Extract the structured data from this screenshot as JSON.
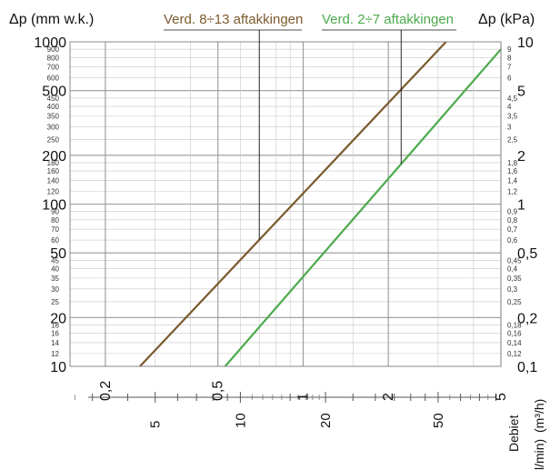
{
  "chart_data": {
    "type": "line",
    "scale": "log-log",
    "left_axis_label": "Δp (mm w.k.)",
    "right_axis_label": "Δp (kPa)",
    "bottom_axis_label": "Debiet",
    "bottom_axis_units": "(m³/h)",
    "lower_axis_units": "l/min)",
    "x_range_m3h": [
      0.15,
      5
    ],
    "y_range_mmwk": [
      10,
      1000
    ],
    "y_range_kpa": [
      0.1,
      10
    ],
    "left_major_ticks": [
      {
        "v": 1000,
        "label": "1000"
      },
      {
        "v": 500,
        "label": "500"
      },
      {
        "v": 200,
        "label": "200"
      },
      {
        "v": 100,
        "label": "100"
      },
      {
        "v": 50,
        "label": "50"
      },
      {
        "v": 20,
        "label": "20"
      },
      {
        "v": 10,
        "label": "10"
      }
    ],
    "left_minor_ticks": [
      {
        "v": 900,
        "label": "900"
      },
      {
        "v": 800,
        "label": "800"
      },
      {
        "v": 700,
        "label": "700"
      },
      {
        "v": 600,
        "label": "600"
      },
      {
        "v": 450,
        "label": "450"
      },
      {
        "v": 400,
        "label": "400"
      },
      {
        "v": 350,
        "label": "350"
      },
      {
        "v": 300,
        "label": "300"
      },
      {
        "v": 250,
        "label": "250"
      },
      {
        "v": 180,
        "label": "180"
      },
      {
        "v": 160,
        "label": "160"
      },
      {
        "v": 140,
        "label": "140"
      },
      {
        "v": 120,
        "label": "120"
      },
      {
        "v": 90,
        "label": "90"
      },
      {
        "v": 80,
        "label": "80"
      },
      {
        "v": 70,
        "label": "70"
      },
      {
        "v": 60,
        "label": "60"
      },
      {
        "v": 45,
        "label": "45"
      },
      {
        "v": 40,
        "label": "40"
      },
      {
        "v": 35,
        "label": "35"
      },
      {
        "v": 30,
        "label": "30"
      },
      {
        "v": 25,
        "label": "25"
      },
      {
        "v": 18,
        "label": "18"
      },
      {
        "v": 16,
        "label": "16"
      },
      {
        "v": 14,
        "label": "14"
      },
      {
        "v": 12,
        "label": "12"
      }
    ],
    "right_major_ticks": [
      {
        "v": 10,
        "label": "10"
      },
      {
        "v": 5,
        "label": "5"
      },
      {
        "v": 2,
        "label": "2"
      },
      {
        "v": 1,
        "label": "1"
      },
      {
        "v": 0.5,
        "label": "0,5"
      },
      {
        "v": 0.2,
        "label": "0,2"
      },
      {
        "v": 0.1,
        "label": "0,1"
      }
    ],
    "right_minor_ticks": [
      {
        "v": 9,
        "label": "9"
      },
      {
        "v": 8,
        "label": "8"
      },
      {
        "v": 7,
        "label": "7"
      },
      {
        "v": 6,
        "label": "6"
      },
      {
        "v": 4.5,
        "label": "4,5"
      },
      {
        "v": 4,
        "label": "4"
      },
      {
        "v": 3.5,
        "label": "3,5"
      },
      {
        "v": 3,
        "label": "3"
      },
      {
        "v": 2.5,
        "label": "2,5"
      },
      {
        "v": 1.8,
        "label": "1,8"
      },
      {
        "v": 1.6,
        "label": "1,6"
      },
      {
        "v": 1.4,
        "label": "1,4"
      },
      {
        "v": 1.2,
        "label": "1,2"
      },
      {
        "v": 0.9,
        "label": "0,9"
      },
      {
        "v": 0.8,
        "label": "0,8"
      },
      {
        "v": 0.7,
        "label": "0,7"
      },
      {
        "v": 0.6,
        "label": "0,6"
      },
      {
        "v": 0.45,
        "label": "0,45"
      },
      {
        "v": 0.4,
        "label": "0,4"
      },
      {
        "v": 0.35,
        "label": "0,35"
      },
      {
        "v": 0.3,
        "label": "0,3"
      },
      {
        "v": 0.25,
        "label": "0,25"
      },
      {
        "v": 0.18,
        "label": "0,18"
      },
      {
        "v": 0.16,
        "label": "0,16"
      },
      {
        "v": 0.14,
        "label": "0,14"
      },
      {
        "v": 0.12,
        "label": "0,12"
      }
    ],
    "x_major_ticks": [
      {
        "v": 0.2,
        "label": "0,2"
      },
      {
        "v": 0.5,
        "label": "0,5"
      },
      {
        "v": 1,
        "label": "1"
      },
      {
        "v": 2,
        "label": "2"
      },
      {
        "v": 5,
        "label": "5"
      }
    ],
    "x_minor_ticks": [
      0.3,
      0.4,
      0.6,
      0.7,
      0.8,
      0.9,
      1.5,
      3,
      4
    ],
    "lmin_labels": [
      {
        "v": 5,
        "label": "5"
      },
      {
        "v": 10,
        "label": "10"
      },
      {
        "v": 20,
        "label": "20"
      },
      {
        "v": 50,
        "label": "50"
      }
    ],
    "lmin_ticks": [
      3,
      4,
      5,
      6,
      7,
      8,
      9,
      10,
      15,
      20,
      25,
      30,
      35,
      40,
      45,
      50,
      60,
      70,
      80
    ],
    "series": [
      {
        "name": "Verd. 8÷13 aftakkingen",
        "color": "#7b5a2e",
        "points": [
          [
            0.265,
            10
          ],
          [
            3.2,
            1000
          ]
        ],
        "marker_x": 0.7
      },
      {
        "name": "Verd. 2÷7 aftakkingen",
        "color": "#4caa4c",
        "points": [
          [
            0.53,
            10
          ],
          [
            5.0,
            900
          ]
        ],
        "marker_x": 2.22
      }
    ],
    "grid": true
  }
}
